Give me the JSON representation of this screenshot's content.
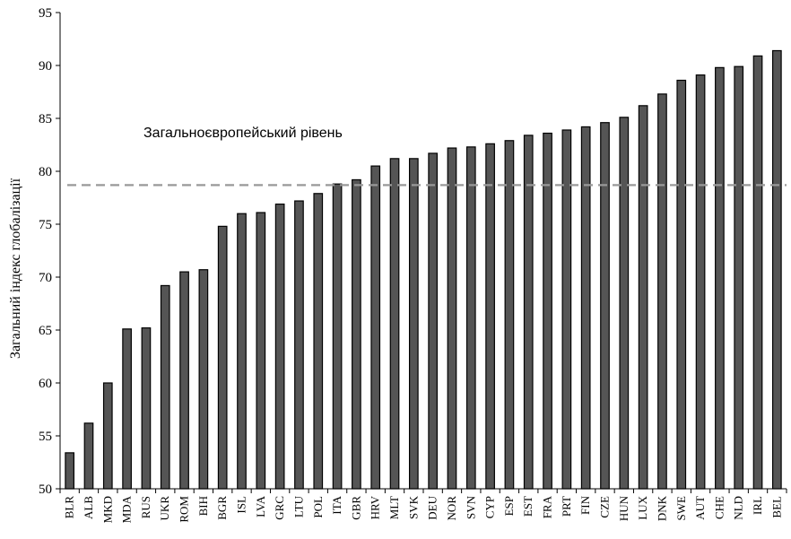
{
  "chart_data": {
    "type": "bar",
    "title": "",
    "xlabel": "",
    "ylabel": "Загальний індекс глобалізації",
    "ylim": [
      50,
      95
    ],
    "yticks": [
      50,
      55,
      60,
      65,
      70,
      75,
      80,
      85,
      90,
      95
    ],
    "grid": false,
    "legend": "none",
    "bar_color": "#555555",
    "reference_line": {
      "label": "Загальноєвропейський рівень",
      "value": 78.7,
      "color": "#999999",
      "style": "dashed"
    },
    "categories": [
      "BLR",
      "ALB",
      "MKD",
      "MDA",
      "RUS",
      "UKR",
      "ROM",
      "BIH",
      "BGR",
      "ISL",
      "LVA",
      "GRC",
      "LTU",
      "POL",
      "ITA",
      "GBR",
      "HRV",
      "MLT",
      "SVK",
      "DEU",
      "NOR",
      "SVN",
      "CYP",
      "ESP",
      "EST",
      "FRA",
      "PRT",
      "FIN",
      "CZE",
      "HUN",
      "LUX",
      "DNK",
      "SWE",
      "AUT",
      "CHE",
      "NLD",
      "IRL",
      "BEL"
    ],
    "values": [
      53.4,
      56.2,
      60.0,
      65.1,
      65.2,
      69.2,
      70.5,
      70.7,
      74.8,
      76.0,
      76.1,
      76.9,
      77.2,
      77.9,
      78.8,
      79.2,
      80.5,
      81.2,
      81.2,
      81.7,
      82.2,
      82.3,
      82.6,
      82.9,
      83.4,
      83.6,
      83.9,
      84.2,
      84.6,
      85.1,
      86.2,
      87.3,
      88.6,
      89.1,
      89.8,
      89.9,
      90.9,
      91.4
    ]
  }
}
